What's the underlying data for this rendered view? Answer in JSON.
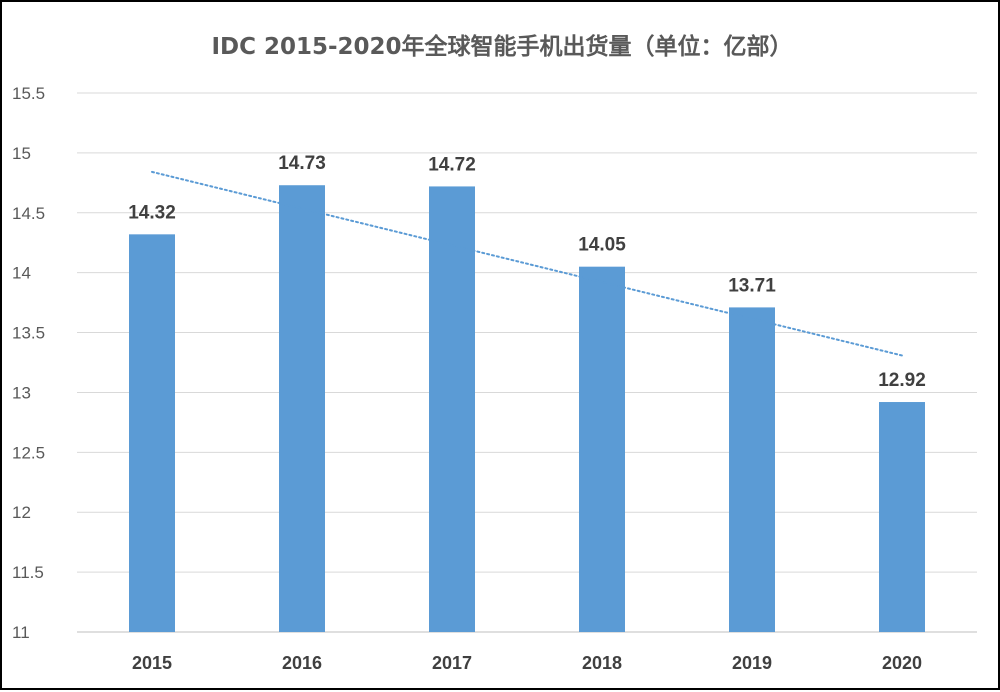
{
  "chart_data": {
    "type": "bar",
    "title": "IDC 2015-2020年全球智能手机出货量（单位：亿部）",
    "categories": [
      "2015",
      "2016",
      "2017",
      "2018",
      "2019",
      "2020"
    ],
    "values": [
      14.32,
      14.73,
      14.72,
      14.05,
      13.71,
      12.92
    ],
    "data_labels": [
      "14.32",
      "14.73",
      "14.72",
      "14.05",
      "13.71",
      "12.92"
    ],
    "ylim": [
      11,
      15.5
    ],
    "yticks": [
      "11",
      "11.5",
      "12",
      "12.5",
      "13",
      "13.5",
      "14",
      "14.5",
      "15",
      "15.5"
    ],
    "ytick_values": [
      11,
      11.5,
      12,
      12.5,
      13,
      13.5,
      14,
      14.5,
      15,
      15.5
    ],
    "xlabel": "",
    "ylabel": "",
    "grid": true,
    "trendline": "linear",
    "bar_color": "#5B9BD5",
    "trend_color": "#5B9BD5",
    "legend": "none"
  }
}
